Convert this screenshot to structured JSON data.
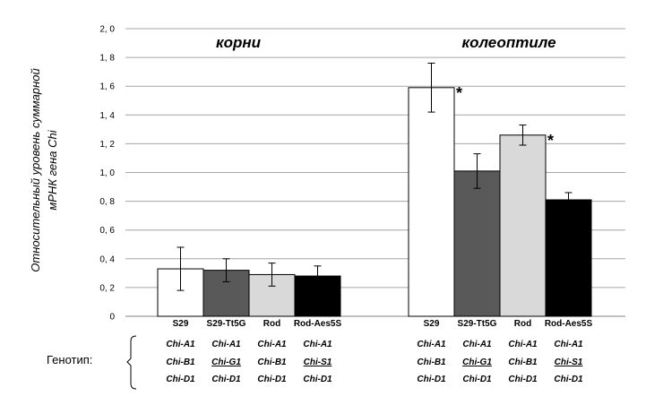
{
  "chart_data": {
    "type": "bar",
    "ylabel_lines": [
      "Относительный уровень суммарной",
      "мРНК гена Chi"
    ],
    "ylim": [
      0,
      2.0
    ],
    "yticks": [
      "0",
      "0, 2",
      "0, 4",
      "0, 6",
      "0, 8",
      "1, 0",
      "1, 2",
      "1, 4",
      "1, 6",
      "1, 8",
      "2, 0"
    ],
    "grid": true,
    "groups": [
      {
        "title": "корни",
        "categories": [
          "S29",
          "S29-Tt5G",
          "Rod",
          "Rod-Aes5S"
        ],
        "values": [
          0.33,
          0.32,
          0.29,
          0.28
        ],
        "errors": [
          0.15,
          0.08,
          0.08,
          0.07
        ],
        "significant": [
          false,
          false,
          false,
          false
        ]
      },
      {
        "title": "колеоптиле",
        "categories": [
          "S29",
          "S29-Tt5G",
          "Rod",
          "Rod-Aes5S"
        ],
        "values": [
          1.59,
          1.01,
          1.26,
          0.81
        ],
        "errors": [
          0.17,
          0.12,
          0.07,
          0.05
        ],
        "significant": [
          true,
          false,
          true,
          false
        ]
      }
    ],
    "bar_colors": [
      "#ffffff",
      "#595959",
      "#d9d9d9",
      "#000000"
    ],
    "significance_mark": "*"
  },
  "genotype": {
    "label": "Генотип:",
    "columns": [
      [
        "Chi-A1",
        "Chi-B1",
        "Chi-D1"
      ],
      [
        "Chi-A1",
        "Chi-G1",
        "Chi-D1"
      ],
      [
        "Chi-A1",
        "Chi-B1",
        "Chi-D1"
      ],
      [
        "Chi-A1",
        "Chi-S1",
        "Chi-D1"
      ]
    ],
    "underlined": [
      [],
      [
        1
      ],
      [],
      [
        1
      ]
    ]
  }
}
